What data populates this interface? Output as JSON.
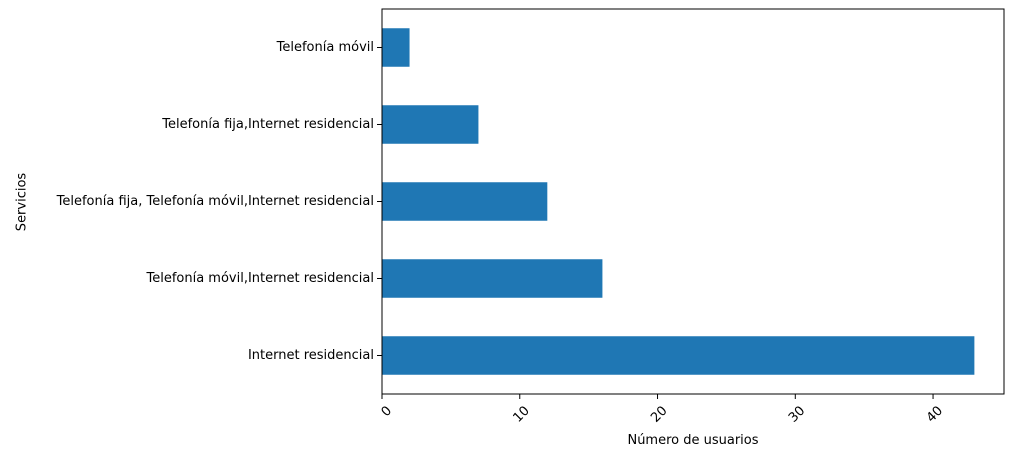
{
  "chart_data": {
    "type": "bar",
    "orientation": "horizontal",
    "title": "",
    "xlabel": "Número de usuarios",
    "ylabel": "Servicios",
    "categories": [
      "Internet residencial",
      "Telefonía móvil,Internet residencial",
      "Telefonía fija, Telefonía móvil,Internet residencial",
      "Telefonía fija,Internet residencial",
      "Telefonía móvil"
    ],
    "values": [
      43,
      16,
      12,
      7,
      2
    ],
    "xlim": [
      0,
      45.15
    ],
    "xticks": [
      0,
      10,
      20,
      30,
      40
    ],
    "xtick_labels": [
      "0",
      "10",
      "20",
      "30",
      "40"
    ],
    "xtick_rotation": 45,
    "grid": false,
    "legend": "none",
    "bar_color": "#1f77b4"
  }
}
